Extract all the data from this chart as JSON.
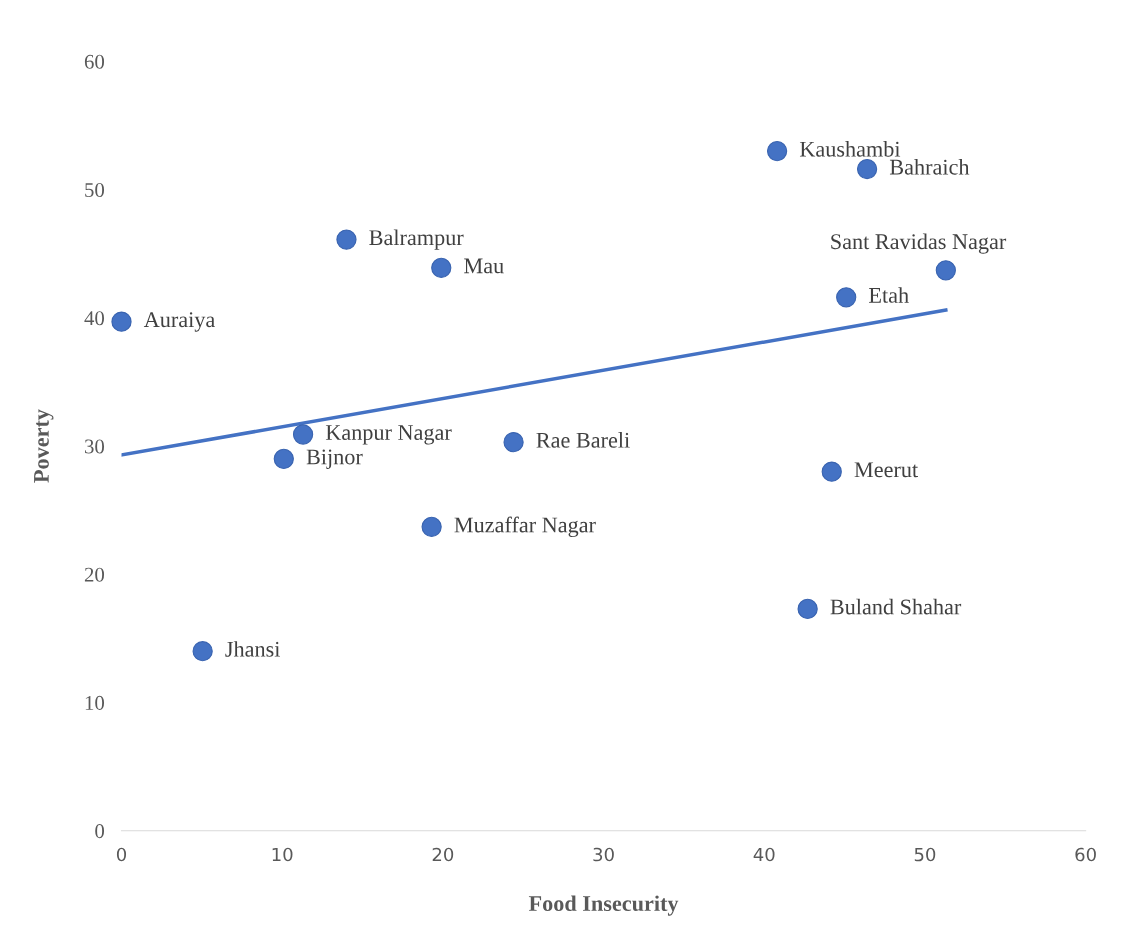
{
  "chart_data": {
    "type": "scatter",
    "xlabel": "Food Insecurity",
    "ylabel": "Poverty",
    "xlim": [
      0,
      60
    ],
    "ylim": [
      0,
      60
    ],
    "xticks": [
      0,
      10,
      20,
      30,
      40,
      50,
      60
    ],
    "yticks": [
      0,
      10,
      20,
      30,
      40,
      50,
      60
    ],
    "grid": false,
    "legend": false,
    "series": [
      {
        "marker": "circle",
        "color": "#4472c4",
        "x": [
          0,
          5.05,
          10.1,
          11.3,
          14.0,
          19.9,
          19.3,
          24.4,
          40.8,
          46.4,
          51.3,
          45.1,
          44.2,
          42.7
        ],
        "values": [
          39.7,
          14.0,
          29.0,
          30.9,
          46.1,
          43.9,
          23.7,
          30.3,
          53.0,
          51.6,
          43.7,
          41.6,
          28.0,
          17.3
        ]
      },
      {
        "type": "line",
        "marker": "none",
        "color": "#4472c4",
        "x": [
          0,
          51.3
        ],
        "values": [
          29.3,
          40.6
        ]
      }
    ],
    "annotations": [
      {
        "text": "Auraiya",
        "x": 0,
        "y": 39.7
      },
      {
        "text": "Jhansi",
        "x": 5.05,
        "y": 14.0
      },
      {
        "text": "Bijnor",
        "x": 10.1,
        "y": 29.0
      },
      {
        "text": "Kanpur Nagar",
        "x": 11.3,
        "y": 30.9
      },
      {
        "text": "Balrampur",
        "x": 14.0,
        "y": 46.1
      },
      {
        "text": "Mau",
        "x": 19.9,
        "y": 43.9
      },
      {
        "text": "Muzaffar Nagar",
        "x": 19.3,
        "y": 23.7
      },
      {
        "text": "Rae Bareli",
        "x": 24.4,
        "y": 30.3
      },
      {
        "text": "Kaushambi",
        "x": 40.8,
        "y": 53.0
      },
      {
        "text": "Bahraich",
        "x": 46.4,
        "y": 51.6
      },
      {
        "text": "Sant Ravidas Nagar",
        "x": 51.3,
        "y": 43.7
      },
      {
        "text": "Etah",
        "x": 45.1,
        "y": 41.6
      },
      {
        "text": "Meerut",
        "x": 44.2,
        "y": 28.0
      },
      {
        "text": "Buland Shahar",
        "x": 42.7,
        "y": 17.3
      }
    ]
  }
}
